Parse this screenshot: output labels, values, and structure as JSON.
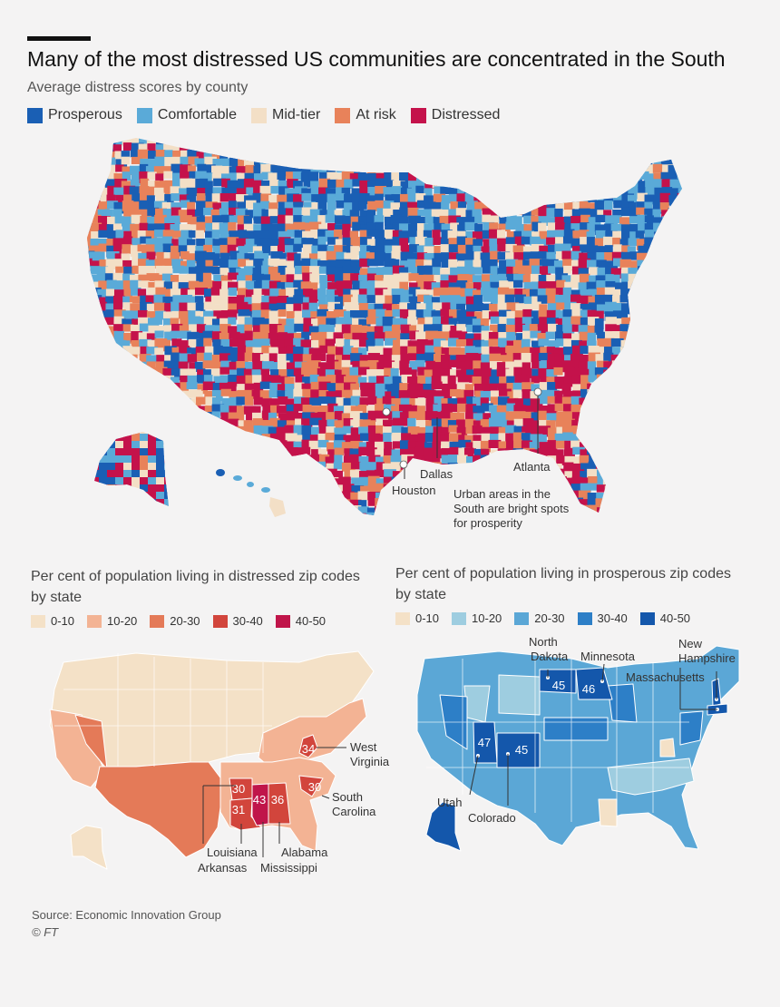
{
  "header": {
    "title": "Many of the most distressed US communities are concentrated in the South",
    "subtitle": "Average distress scores by county"
  },
  "main_legend": [
    {
      "label": "Prosperous",
      "color": "#1a5fb4"
    },
    {
      "label": "Comfortable",
      "color": "#5aaad8"
    },
    {
      "label": "Mid-tier",
      "color": "#f3dfc6"
    },
    {
      "label": "At risk",
      "color": "#e8825a"
    },
    {
      "label": "Distressed",
      "color": "#c4124b"
    }
  ],
  "county_map": {
    "cities": {
      "dallas": "Dallas",
      "houston": "Houston",
      "atlanta": "Atlanta"
    },
    "annotation": [
      "Urban areas in the",
      "South are bright spots",
      "for prosperity"
    ]
  },
  "distressed_map": {
    "heading": "Per cent of population living in distressed zip codes by state",
    "legend": [
      {
        "label": "0-10",
        "color": "#f4e1c7"
      },
      {
        "label": "10-20",
        "color": "#f3b394"
      },
      {
        "label": "20-30",
        "color": "#e47a58"
      },
      {
        "label": "30-40",
        "color": "#d2453c"
      },
      {
        "label": "40-50",
        "color": "#c0154a"
      }
    ],
    "values": {
      "west_virginia": "34",
      "louisiana": "31",
      "arkansas": "30",
      "mississippi": "43",
      "alabama": "36",
      "south_carolina": "30"
    },
    "labels": {
      "west_virginia": [
        "West",
        "Virginia"
      ],
      "south_carolina": [
        "South",
        "Carolina"
      ],
      "louisiana": "Louisiana",
      "arkansas": "Arkansas",
      "alabama": "Alabama",
      "mississippi": "Mississippi"
    }
  },
  "prosperous_map": {
    "heading": "Per cent of population living in prosperous zip codes by state",
    "legend": [
      {
        "label": "0-10",
        "color": "#f4e1c7"
      },
      {
        "label": "10-20",
        "color": "#9ecde0"
      },
      {
        "label": "20-30",
        "color": "#5ba7d6"
      },
      {
        "label": "30-40",
        "color": "#2d7fc7"
      },
      {
        "label": "40-50",
        "color": "#1457ab"
      }
    ],
    "values": {
      "north_dakota": "45",
      "minnesota": "46",
      "utah": "47",
      "colorado": "45"
    },
    "labels": {
      "north_dakota": [
        "North",
        "Dakota"
      ],
      "minnesota": "Minnesota",
      "new_hampshire": [
        "New",
        "Hampshire"
      ],
      "massachusetts": "Massachusetts",
      "utah": "Utah",
      "colorado": "Colorado"
    }
  },
  "footer": {
    "source": "Source: Economic Innovation Group",
    "credit": "© FT"
  }
}
